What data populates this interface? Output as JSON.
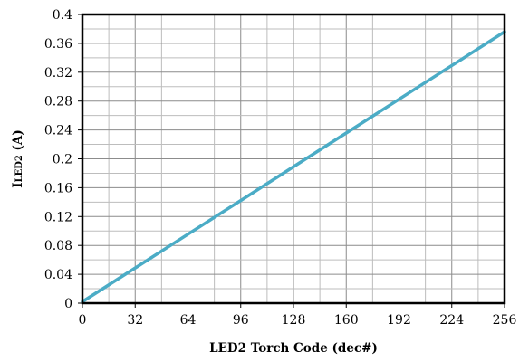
{
  "chart_data": {
    "type": "line",
    "title": "",
    "xlabel": "LED2  Torch  Code (dec#)",
    "ylabel": {
      "main": "I",
      "subscript": "LED2",
      "unit": " (A)"
    },
    "xlim": [
      0,
      256
    ],
    "ylim": [
      0,
      0.4
    ],
    "x_ticks": [
      0,
      32,
      64,
      96,
      128,
      160,
      192,
      224,
      256
    ],
    "x_tick_labels": [
      "0",
      "32",
      "64",
      "96",
      "128",
      "160",
      "192",
      "224",
      "256"
    ],
    "y_ticks": [
      0,
      0.04,
      0.08,
      0.12,
      0.16,
      0.2,
      0.24,
      0.28,
      0.32,
      0.36,
      0.4
    ],
    "y_tick_labels": [
      "0",
      "0.04",
      "0.08",
      "0.12",
      "0.16",
      "0.2",
      "0.24",
      "0.28",
      "0.32",
      "0.36",
      "0.4"
    ],
    "x_minor_step": 16,
    "y_minor_step": 0.02,
    "grid": true,
    "legend": "none",
    "series": [
      {
        "color": "#4bacc6",
        "x": [
          0,
          32,
          64,
          96,
          128,
          160,
          192,
          224,
          256
        ],
        "y": [
          0.002,
          0.0487,
          0.0955,
          0.1422,
          0.189,
          0.2357,
          0.2825,
          0.3292,
          0.376
        ]
      }
    ]
  }
}
